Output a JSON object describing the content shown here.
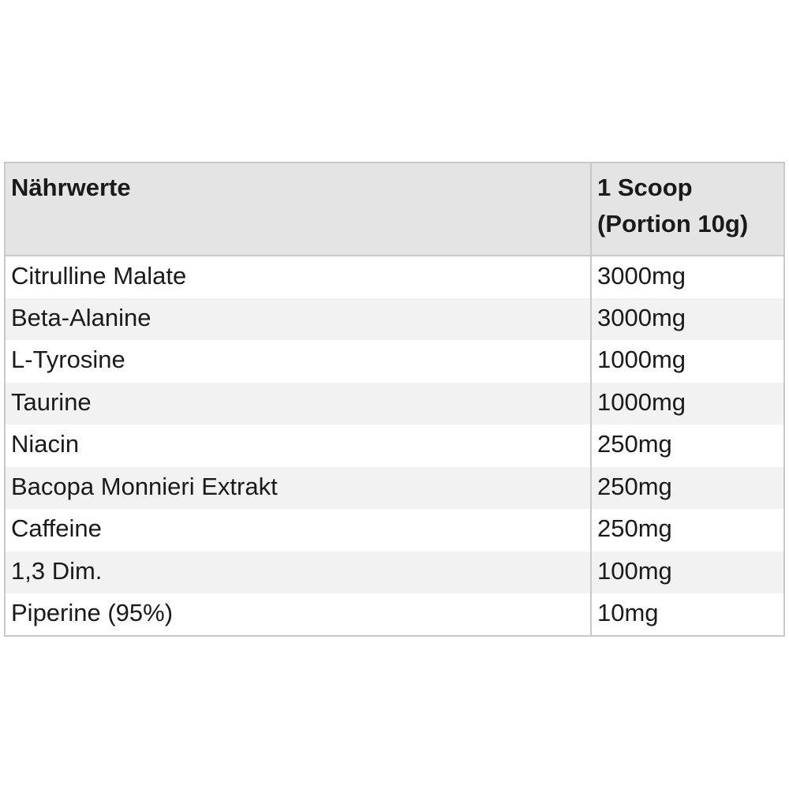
{
  "table": {
    "header": {
      "name": "Nährwerte",
      "amount_line1": "1 Scoop",
      "amount_line2": "(Portion 10g)"
    },
    "rows": [
      {
        "name": "Citrulline Malate",
        "amount": "3000mg"
      },
      {
        "name": "Beta-Alanine",
        "amount": "3000mg"
      },
      {
        "name": "L-Tyrosine",
        "amount": "1000mg"
      },
      {
        "name": "Taurine",
        "amount": "1000mg"
      },
      {
        "name": "Niacin",
        "amount": "250mg"
      },
      {
        "name": "Bacopa Monnieri Extrakt",
        "amount": "250mg"
      },
      {
        "name": "Caffeine",
        "amount": "250mg"
      },
      {
        "name": "1,3 Dim.",
        "amount": "100mg"
      },
      {
        "name": "Piperine (95%)",
        "amount": "10mg"
      }
    ]
  }
}
